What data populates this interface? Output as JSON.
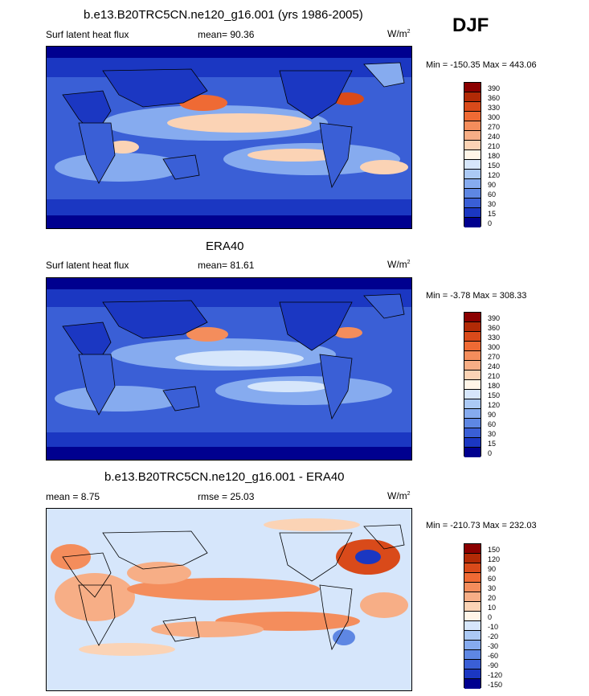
{
  "season": "DJF",
  "units_base": "W/m",
  "units_exp": "2",
  "panels": [
    {
      "title": "b.e13.B20TRC5CN.ne120_g16.001 (yrs 1986-2005)",
      "left_label": "Surf latent heat flux",
      "mean_label": "mean=  90.36",
      "minmax": "Min = -150.35 Max = 443.06",
      "levels": [
        "390",
        "360",
        "330",
        "300",
        "270",
        "240",
        "210",
        "180",
        "150",
        "120",
        "90",
        "60",
        "30",
        "15",
        "0"
      ],
      "colors": [
        "#8b0000",
        "#b22a06",
        "#d94a1a",
        "#ef6a34",
        "#f48d5c",
        "#f7ae86",
        "#fbd3b5",
        "#fff5e8",
        "#d6e6fb",
        "#abc9f5",
        "#86abef",
        "#5e87e3",
        "#3a5fd6",
        "#1b37c2",
        "#00008f"
      ]
    },
    {
      "title": "ERA40",
      "left_label": "Surf latent heat flux",
      "mean_label": "mean=  81.61",
      "minmax": "Min =  -3.78 Max = 308.33",
      "levels": [
        "390",
        "360",
        "330",
        "300",
        "270",
        "240",
        "210",
        "180",
        "150",
        "120",
        "90",
        "60",
        "30",
        "15",
        "0"
      ],
      "colors": [
        "#8b0000",
        "#b22a06",
        "#d94a1a",
        "#ef6a34",
        "#f48d5c",
        "#f7ae86",
        "#fbd3b5",
        "#fff5e8",
        "#d6e6fb",
        "#abc9f5",
        "#86abef",
        "#5e87e3",
        "#3a5fd6",
        "#1b37c2",
        "#00008f"
      ]
    },
    {
      "title": "b.e13.B20TRC5CN.ne120_g16.001 - ERA40",
      "left_label": "mean =   8.75",
      "mean_label": "rmse =  25.03",
      "minmax": "Min = -210.73 Max = 232.03",
      "levels": [
        "150",
        "120",
        "90",
        "60",
        "30",
        "20",
        "10",
        "0",
        "-10",
        "-20",
        "-30",
        "-60",
        "-90",
        "-120",
        "-150"
      ],
      "colors": [
        "#8b0000",
        "#b22a06",
        "#d94a1a",
        "#ef6a34",
        "#f48d5c",
        "#f7ae86",
        "#fbd3b5",
        "#fff5e8",
        "#d6e6fb",
        "#abc9f5",
        "#86abef",
        "#5e87e3",
        "#3a5fd6",
        "#1b37c2",
        "#00008f"
      ]
    }
  ],
  "chart_data": [
    {
      "type": "heatmap",
      "title": "b.e13.B20TRC5CN.ne120_g16.001 (yrs 1986-2005)",
      "variable": "Surf latent heat flux",
      "units": "W/m2",
      "season": "DJF",
      "mean": 90.36,
      "min": -150.35,
      "max": 443.06,
      "contour_levels": [
        0,
        15,
        30,
        60,
        90,
        120,
        150,
        180,
        210,
        240,
        270,
        300,
        330,
        360,
        390
      ],
      "colormap": "blue-white-red"
    },
    {
      "type": "heatmap",
      "title": "ERA40",
      "variable": "Surf latent heat flux",
      "units": "W/m2",
      "mean": 81.61,
      "min": -3.78,
      "max": 308.33,
      "contour_levels": [
        0,
        15,
        30,
        60,
        90,
        120,
        150,
        180,
        210,
        240,
        270,
        300,
        330,
        360,
        390
      ],
      "colormap": "blue-white-red"
    },
    {
      "type": "heatmap",
      "title": "b.e13.B20TRC5CN.ne120_g16.001 - ERA40",
      "units": "W/m2",
      "mean": 8.75,
      "rmse": 25.03,
      "min": -210.73,
      "max": 232.03,
      "contour_levels": [
        -150,
        -120,
        -90,
        -60,
        -30,
        -20,
        -10,
        0,
        10,
        20,
        30,
        60,
        90,
        120,
        150
      ],
      "colormap": "blue-white-red"
    }
  ]
}
